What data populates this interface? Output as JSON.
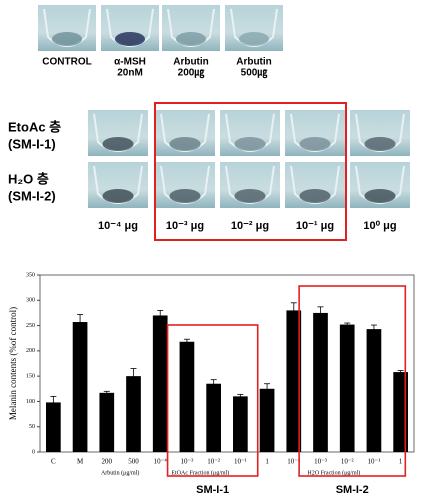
{
  "figure": {
    "top_labels": [
      [
        "CONTROL"
      ],
      [
        "α-MSH",
        "20nM"
      ],
      [
        "Arbutin",
        "200㎍"
      ],
      [
        "Arbutin",
        "500㎍"
      ]
    ],
    "row_labels": [
      [
        "EtoAc 층",
        "(SM-I-1)"
      ],
      [
        "H₂O 층",
        "(SM-I-2)"
      ]
    ],
    "conc_labels": [
      "10⁻⁴ μg",
      "10⁻³ μg",
      "10⁻² μg",
      "10⁻¹ μg",
      "10⁰ μg"
    ]
  },
  "chart_data": {
    "type": "bar",
    "y_label": "Melanin contents (%of control)",
    "categories": [
      "C",
      "M",
      "200",
      "500",
      "10⁻⁴",
      "10⁻³",
      "10⁻²",
      "10⁻¹",
      "1",
      "10⁻⁴",
      "10⁻³",
      "10⁻²",
      "10⁻¹",
      "1"
    ],
    "values": [
      98,
      257,
      117,
      150,
      270,
      218,
      135,
      110,
      125,
      280,
      275,
      252,
      243,
      158
    ],
    "errors": [
      12,
      15,
      3,
      15,
      10,
      5,
      8,
      4,
      10,
      15,
      12,
      3,
      8,
      3
    ],
    "color": "#000000",
    "ylim": [
      0,
      350
    ],
    "yticks": [
      0,
      50,
      100,
      150,
      200,
      250,
      300,
      350
    ],
    "group_labels": [
      "Arbutin (μg/ml)",
      "EtOAc Fraction (μg/ml)",
      "H2O Fraction (μg/ml)"
    ],
    "box_labels": [
      "SM-I-1",
      "SM-I-2"
    ]
  }
}
